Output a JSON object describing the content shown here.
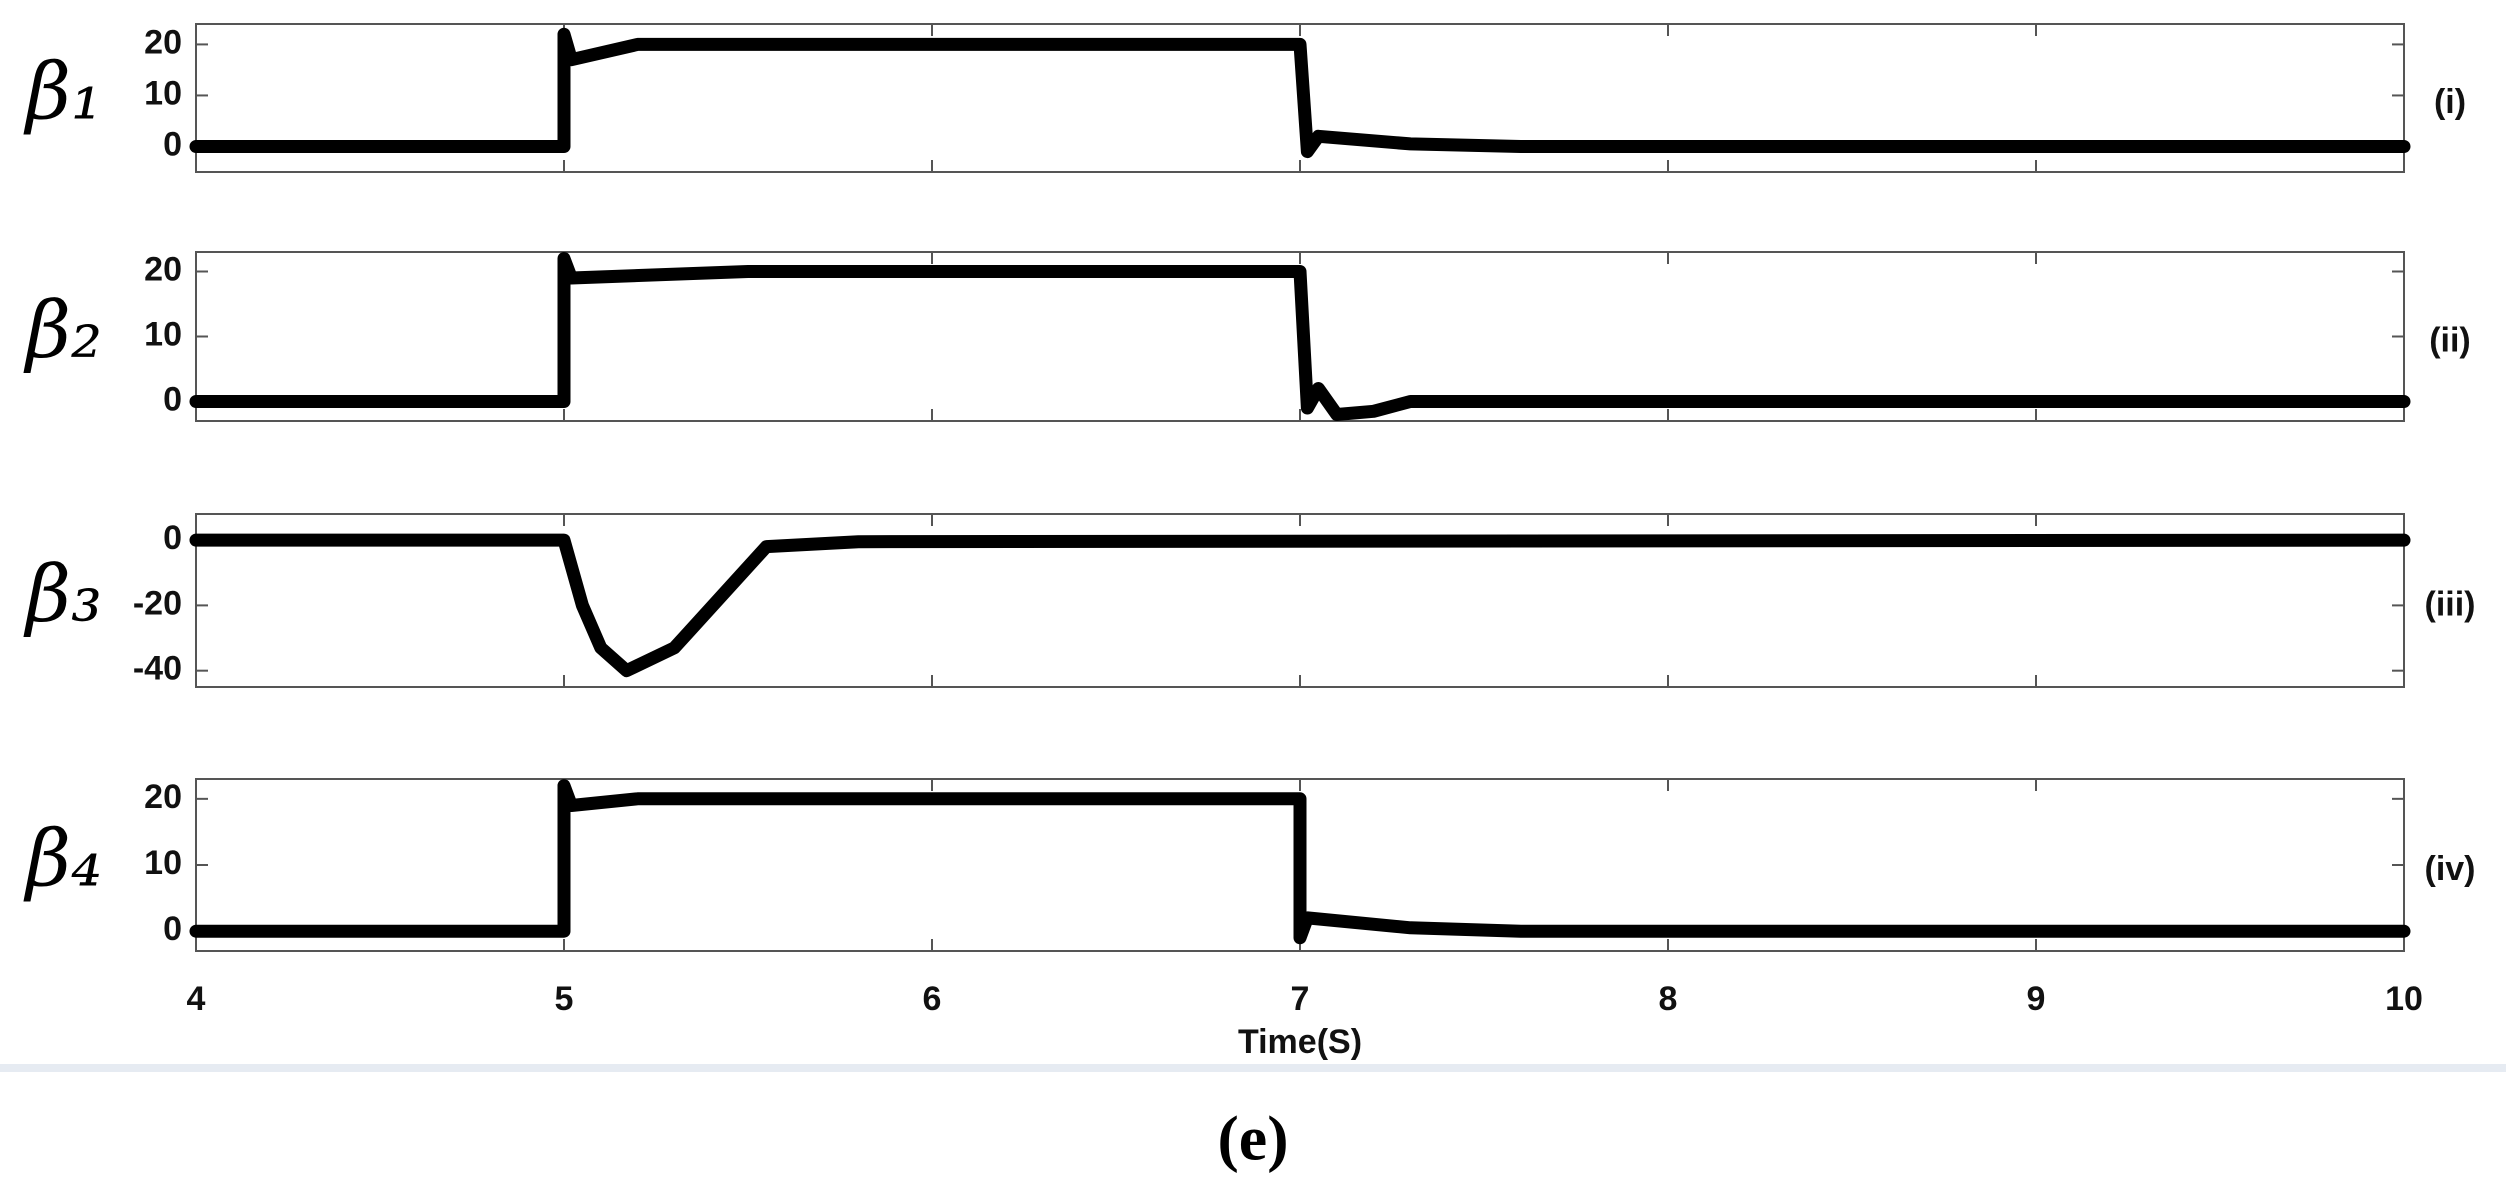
{
  "chart_data": [
    {
      "type": "line",
      "ylabel": "β₁",
      "annotation": "(i)",
      "color": "#000000",
      "x": [
        4,
        5,
        5,
        5.02,
        5.2,
        5.5,
        7,
        7,
        7.02,
        7.05,
        7.3,
        7.6,
        10
      ],
      "values": [
        0,
        0,
        22,
        17,
        20,
        20,
        20,
        20,
        -1,
        2,
        0.5,
        0,
        0
      ],
      "xlim": [
        4,
        10
      ],
      "ylim": [
        -5,
        24
      ],
      "yticks": [
        0,
        10,
        20
      ]
    },
    {
      "type": "line",
      "ylabel": "β₂",
      "annotation": "(ii)",
      "color": "#000000",
      "x": [
        4,
        5,
        5,
        5.02,
        5.5,
        7,
        7,
        7.02,
        7.05,
        7.1,
        7.2,
        7.3,
        10
      ],
      "values": [
        0,
        0,
        22,
        19,
        20,
        20,
        20,
        -1,
        2,
        -2,
        -1.5,
        0,
        0
      ],
      "xlim": [
        4,
        10
      ],
      "ylim": [
        -3,
        23
      ],
      "yticks": [
        0,
        10,
        20
      ]
    },
    {
      "type": "line",
      "ylabel": "β₃",
      "annotation": "(iii)",
      "color": "#000000",
      "x": [
        4,
        5,
        5.05,
        5.1,
        5.17,
        5.3,
        5.55,
        5.8,
        10
      ],
      "values": [
        0,
        0,
        -20,
        -33,
        -40,
        -33,
        -2,
        -0.5,
        0
      ],
      "xlim": [
        4,
        10
      ],
      "ylim": [
        -45,
        8
      ],
      "yticks": [
        0,
        -20,
        -40
      ]
    },
    {
      "type": "line",
      "ylabel": "β₄",
      "annotation": "(iv)",
      "color": "#000000",
      "x": [
        4,
        5,
        5,
        5.02,
        5.2,
        7,
        7,
        7.02,
        7.3,
        7.6,
        10
      ],
      "values": [
        0,
        0,
        22,
        19,
        20,
        20,
        -1,
        2,
        0.5,
        0,
        0
      ],
      "xlim": [
        4,
        10
      ],
      "ylim": [
        -3,
        23
      ],
      "yticks": [
        0,
        10,
        20
      ],
      "xticks": [
        4,
        5,
        6,
        7,
        8,
        9,
        10
      ],
      "xlabel": "Time(S)"
    }
  ],
  "caption": "(e)"
}
